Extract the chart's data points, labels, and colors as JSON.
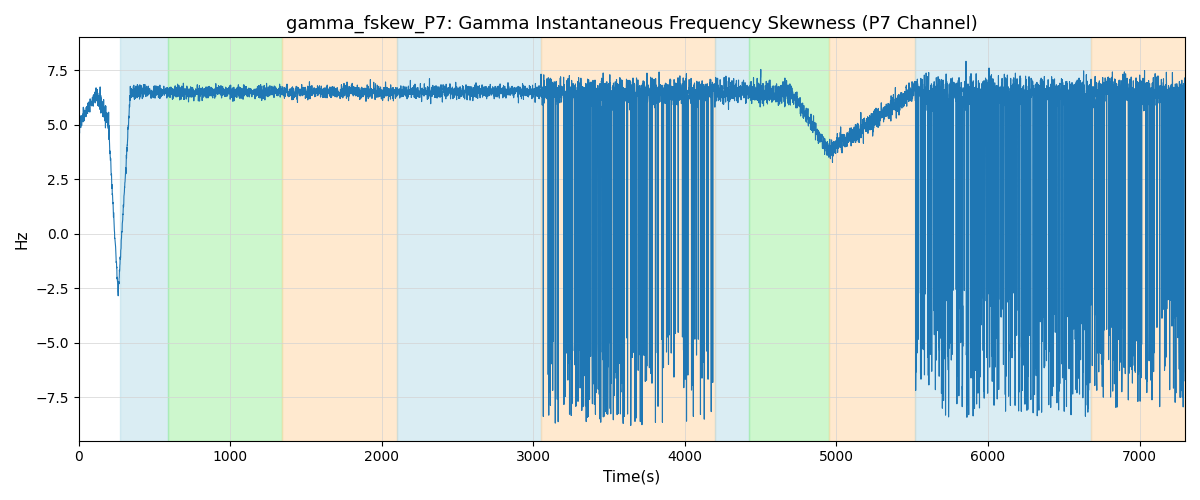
{
  "title": "gamma_fskew_P7: Gamma Instantaneous Frequency Skewness (P7 Channel)",
  "xlabel": "Time(s)",
  "ylabel": "Hz",
  "line_color": "#1f77b4",
  "line_width": 0.8,
  "ylim": [
    -9.5,
    9.0
  ],
  "xlim": [
    0,
    7300
  ],
  "yticks": [
    -7.5,
    -5.0,
    -2.5,
    0.0,
    2.5,
    5.0,
    7.5
  ],
  "xticks": [
    0,
    1000,
    2000,
    3000,
    4000,
    5000,
    6000,
    7000
  ],
  "regions": [
    {
      "start": 270,
      "end": 590,
      "color": "#add8e6",
      "alpha": 0.45
    },
    {
      "start": 590,
      "end": 1340,
      "color": "#90ee90",
      "alpha": 0.45
    },
    {
      "start": 1340,
      "end": 2100,
      "color": "#ffd8a8",
      "alpha": 0.55
    },
    {
      "start": 2100,
      "end": 3050,
      "color": "#add8e6",
      "alpha": 0.45
    },
    {
      "start": 3050,
      "end": 4200,
      "color": "#ffd8a8",
      "alpha": 0.55
    },
    {
      "start": 4200,
      "end": 4420,
      "color": "#add8e6",
      "alpha": 0.45
    },
    {
      "start": 4420,
      "end": 4950,
      "color": "#90ee90",
      "alpha": 0.45
    },
    {
      "start": 4950,
      "end": 5520,
      "color": "#ffd8a8",
      "alpha": 0.55
    },
    {
      "start": 5520,
      "end": 6680,
      "color": "#add8e6",
      "alpha": 0.45
    },
    {
      "start": 6680,
      "end": 7300,
      "color": "#ffd8a8",
      "alpha": 0.55
    }
  ],
  "title_fontsize": 13,
  "n_points": 7300
}
